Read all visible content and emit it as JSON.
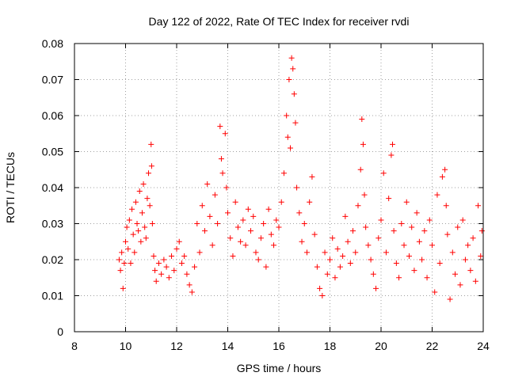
{
  "chart_data": {
    "type": "scatter",
    "title": "Day 122 of 2022, Rate Of TEC Index for receiver rvdi",
    "xlabel": "GPS time / hours",
    "ylabel": "ROTI / TECUs",
    "xlim": [
      8,
      24
    ],
    "ylim": [
      0,
      0.08
    ],
    "x_ticks": [
      8,
      10,
      12,
      14,
      16,
      18,
      20,
      22,
      24
    ],
    "x_tick_labels": [
      "8",
      "10",
      "12",
      "14",
      "16",
      "18",
      "20",
      "22",
      "24"
    ],
    "y_ticks": [
      0,
      0.01,
      0.02,
      0.03,
      0.04,
      0.05,
      0.06,
      0.07,
      0.08
    ],
    "y_tick_labels": [
      "0",
      "0.01",
      "0.02",
      "0.03",
      "0.04",
      "0.05",
      "0.06",
      "0.07",
      "0.08"
    ],
    "grid": true,
    "marker": "+",
    "color": "#ff0000",
    "series": [
      {
        "points": [
          [
            9.75,
            0.02
          ],
          [
            9.8,
            0.017
          ],
          [
            9.85,
            0.022
          ],
          [
            9.9,
            0.012
          ],
          [
            9.95,
            0.019
          ],
          [
            10.0,
            0.025
          ],
          [
            10.05,
            0.029
          ],
          [
            10.1,
            0.023
          ],
          [
            10.15,
            0.031
          ],
          [
            10.2,
            0.019
          ],
          [
            10.25,
            0.034
          ],
          [
            10.3,
            0.027
          ],
          [
            10.35,
            0.022
          ],
          [
            10.4,
            0.036
          ],
          [
            10.45,
            0.03
          ],
          [
            10.5,
            0.028
          ],
          [
            10.55,
            0.039
          ],
          [
            10.6,
            0.025
          ],
          [
            10.65,
            0.033
          ],
          [
            10.7,
            0.041
          ],
          [
            10.75,
            0.029
          ],
          [
            10.8,
            0.026
          ],
          [
            10.85,
            0.037
          ],
          [
            10.9,
            0.044
          ],
          [
            10.95,
            0.035
          ],
          [
            11.0,
            0.052
          ],
          [
            11.02,
            0.046
          ],
          [
            11.05,
            0.03
          ],
          [
            11.1,
            0.021
          ],
          [
            11.15,
            0.017
          ],
          [
            11.2,
            0.014
          ],
          [
            11.3,
            0.019
          ],
          [
            11.4,
            0.016
          ],
          [
            11.5,
            0.02
          ],
          [
            11.6,
            0.018
          ],
          [
            11.7,
            0.015
          ],
          [
            11.8,
            0.021
          ],
          [
            11.9,
            0.017
          ],
          [
            12.0,
            0.023
          ],
          [
            12.1,
            0.025
          ],
          [
            12.2,
            0.019
          ],
          [
            12.3,
            0.021
          ],
          [
            12.4,
            0.016
          ],
          [
            12.5,
            0.013
          ],
          [
            12.6,
            0.011
          ],
          [
            12.7,
            0.018
          ],
          [
            12.8,
            0.03
          ],
          [
            12.9,
            0.022
          ],
          [
            13.0,
            0.035
          ],
          [
            13.1,
            0.028
          ],
          [
            13.2,
            0.041
          ],
          [
            13.3,
            0.032
          ],
          [
            13.4,
            0.024
          ],
          [
            13.5,
            0.038
          ],
          [
            13.6,
            0.03
          ],
          [
            13.7,
            0.057
          ],
          [
            13.75,
            0.048
          ],
          [
            13.8,
            0.044
          ],
          [
            13.9,
            0.055
          ],
          [
            13.95,
            0.04
          ],
          [
            14.0,
            0.033
          ],
          [
            14.1,
            0.026
          ],
          [
            14.2,
            0.021
          ],
          [
            14.3,
            0.036
          ],
          [
            14.4,
            0.029
          ],
          [
            14.5,
            0.025
          ],
          [
            14.6,
            0.031
          ],
          [
            14.7,
            0.024
          ],
          [
            14.8,
            0.034
          ],
          [
            14.9,
            0.028
          ],
          [
            15.0,
            0.032
          ],
          [
            15.1,
            0.022
          ],
          [
            15.2,
            0.02
          ],
          [
            15.3,
            0.026
          ],
          [
            15.4,
            0.03
          ],
          [
            15.5,
            0.018
          ],
          [
            15.6,
            0.034
          ],
          [
            15.7,
            0.027
          ],
          [
            15.8,
            0.024
          ],
          [
            15.9,
            0.031
          ],
          [
            16.0,
            0.029
          ],
          [
            16.1,
            0.036
          ],
          [
            16.2,
            0.044
          ],
          [
            16.3,
            0.06
          ],
          [
            16.35,
            0.054
          ],
          [
            16.4,
            0.07
          ],
          [
            16.45,
            0.051
          ],
          [
            16.5,
            0.076
          ],
          [
            16.55,
            0.073
          ],
          [
            16.6,
            0.066
          ],
          [
            16.65,
            0.058
          ],
          [
            16.7,
            0.04
          ],
          [
            16.8,
            0.033
          ],
          [
            16.9,
            0.025
          ],
          [
            17.0,
            0.03
          ],
          [
            17.1,
            0.022
          ],
          [
            17.2,
            0.036
          ],
          [
            17.3,
            0.043
          ],
          [
            17.4,
            0.027
          ],
          [
            17.5,
            0.018
          ],
          [
            17.6,
            0.012
          ],
          [
            17.7,
            0.01
          ],
          [
            17.8,
            0.022
          ],
          [
            17.9,
            0.016
          ],
          [
            18.0,
            0.02
          ],
          [
            18.1,
            0.026
          ],
          [
            18.2,
            0.015
          ],
          [
            18.3,
            0.023
          ],
          [
            18.4,
            0.018
          ],
          [
            18.5,
            0.021
          ],
          [
            18.6,
            0.032
          ],
          [
            18.7,
            0.025
          ],
          [
            18.8,
            0.019
          ],
          [
            18.9,
            0.028
          ],
          [
            19.0,
            0.022
          ],
          [
            19.1,
            0.035
          ],
          [
            19.2,
            0.045
          ],
          [
            19.25,
            0.059
          ],
          [
            19.3,
            0.052
          ],
          [
            19.35,
            0.038
          ],
          [
            19.4,
            0.029
          ],
          [
            19.5,
            0.024
          ],
          [
            19.6,
            0.02
          ],
          [
            19.7,
            0.016
          ],
          [
            19.8,
            0.012
          ],
          [
            19.9,
            0.026
          ],
          [
            20.0,
            0.031
          ],
          [
            20.1,
            0.044
          ],
          [
            20.2,
            0.022
          ],
          [
            20.3,
            0.037
          ],
          [
            20.4,
            0.049
          ],
          [
            20.45,
            0.052
          ],
          [
            20.5,
            0.028
          ],
          [
            20.6,
            0.019
          ],
          [
            20.7,
            0.015
          ],
          [
            20.8,
            0.03
          ],
          [
            20.9,
            0.024
          ],
          [
            21.0,
            0.036
          ],
          [
            21.1,
            0.021
          ],
          [
            21.2,
            0.029
          ],
          [
            21.3,
            0.017
          ],
          [
            21.4,
            0.033
          ],
          [
            21.5,
            0.025
          ],
          [
            21.6,
            0.02
          ],
          [
            21.7,
            0.028
          ],
          [
            21.8,
            0.015
          ],
          [
            21.9,
            0.031
          ],
          [
            22.0,
            0.024
          ],
          [
            22.1,
            0.011
          ],
          [
            22.2,
            0.038
          ],
          [
            22.3,
            0.019
          ],
          [
            22.4,
            0.043
          ],
          [
            22.5,
            0.045
          ],
          [
            22.55,
            0.035
          ],
          [
            22.6,
            0.027
          ],
          [
            22.7,
            0.009
          ],
          [
            22.8,
            0.022
          ],
          [
            22.9,
            0.016
          ],
          [
            23.0,
            0.029
          ],
          [
            23.1,
            0.013
          ],
          [
            23.2,
            0.031
          ],
          [
            23.3,
            0.02
          ],
          [
            23.4,
            0.024
          ],
          [
            23.5,
            0.017
          ],
          [
            23.6,
            0.026
          ],
          [
            23.7,
            0.014
          ],
          [
            23.8,
            0.035
          ],
          [
            23.9,
            0.021
          ],
          [
            23.95,
            0.028
          ]
        ]
      }
    ]
  }
}
